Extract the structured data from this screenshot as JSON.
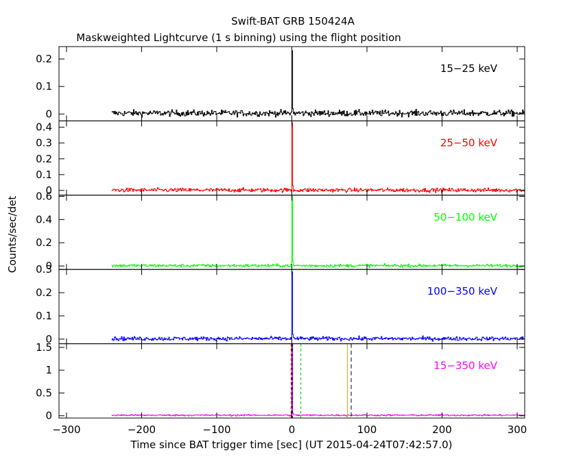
{
  "header": {
    "title": "Swift-BAT GRB 150424A",
    "subtitle": "Maskweighted Lightcurve (1 s binning) using the flight position"
  },
  "chart_data": {
    "type": "line",
    "xlabel": "Time since BAT trigger time [sec] (UT 2015-04-24T07:42:57.0)",
    "ylabel": "Counts/sec/det",
    "xlim": [
      -310,
      310
    ],
    "x_ticks": [
      -300,
      -200,
      -100,
      0,
      100,
      200,
      300
    ],
    "data_start": -240,
    "data_end": 310,
    "grid": false,
    "panels": [
      {
        "label": "15−25 keV",
        "color": "#000000",
        "ylim": [
          -0.025,
          0.245
        ],
        "y_ticks": [
          0,
          0.1,
          0.2
        ],
        "y_tick_labels": [
          "0",
          "0.1",
          "0.2"
        ],
        "baseline": 0.003,
        "noise": 0.008,
        "peak": [
          {
            "x": 0,
            "y": 0.23
          },
          {
            "x": 1,
            "y": 0.02
          }
        ]
      },
      {
        "label": "25−50 keV",
        "color": "#ff0000",
        "ylim": [
          -0.03,
          0.44
        ],
        "y_ticks": [
          0,
          0.1,
          0.2,
          0.3,
          0.4
        ],
        "y_tick_labels": [
          "0",
          "0.1",
          "0.2",
          "0.3",
          "0.4"
        ],
        "baseline": 0.002,
        "noise": 0.009,
        "peak": [
          {
            "x": 0,
            "y": 0.43
          },
          {
            "x": 1,
            "y": 0.03
          }
        ]
      },
      {
        "label": "50−100 keV",
        "color": "#00ff00",
        "ylim": [
          -0.03,
          0.61
        ],
        "y_ticks": [
          0,
          0.2,
          0.4,
          0.6
        ],
        "y_tick_labels": [
          "0",
          "0.2",
          "0.4",
          "0.6"
        ],
        "baseline": 0.003,
        "noise": 0.009,
        "peak": [
          {
            "x": 0,
            "y": 0.6
          },
          {
            "x": 1,
            "y": 0.04
          }
        ]
      },
      {
        "label": "100−350 keV",
        "color": "#0000ff",
        "ylim": [
          -0.02,
          0.3
        ],
        "y_ticks": [
          0,
          0.1,
          0.2,
          0.3
        ],
        "y_tick_labels": [
          "0",
          "0.1",
          "0.2",
          "0.3"
        ],
        "baseline": 0.002,
        "noise": 0.006,
        "peak": [
          {
            "x": 0,
            "y": 0.29
          },
          {
            "x": 1,
            "y": 0.02
          }
        ]
      },
      {
        "label": "15−350 keV",
        "color": "#ff00ff",
        "ylim": [
          -0.05,
          1.58
        ],
        "y_ticks": [
          0,
          0.5,
          1,
          1.5
        ],
        "y_tick_labels": [
          "0",
          "0.5",
          "1",
          "1.5"
        ],
        "baseline": 0.012,
        "noise": 0.012,
        "peak": [
          {
            "x": 0,
            "y": 1.55
          },
          {
            "x": 1,
            "y": 0.06
          }
        ],
        "markers": [
          {
            "x": -1,
            "color": "#ff0000",
            "dash": "4,3"
          },
          {
            "x": 0,
            "color": "#000000",
            "dash": "5,3"
          },
          {
            "x": 1,
            "color": "#0000ff",
            "dash": "4,3"
          },
          {
            "x": 12,
            "color": "#00c000",
            "dash": "4,3"
          },
          {
            "x": 74,
            "color": "#ff9900",
            "dash": ""
          },
          {
            "x": 79,
            "color": "#000000",
            "dash": "6,4"
          }
        ]
      }
    ]
  }
}
